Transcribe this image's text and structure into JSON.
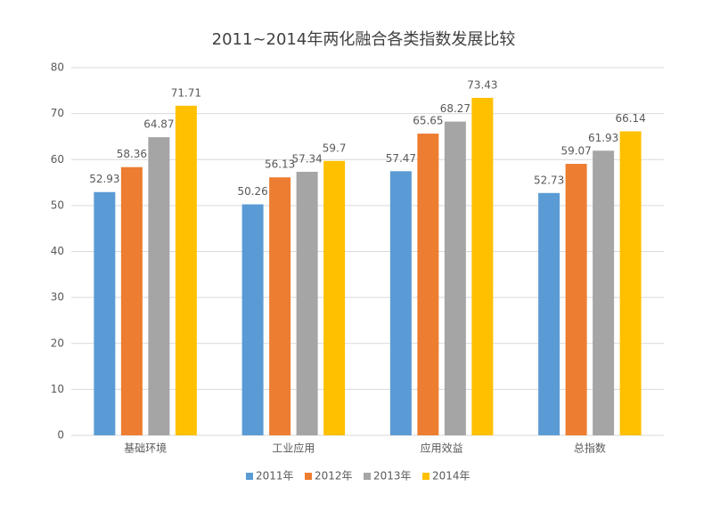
{
  "chart_data": {
    "type": "bar",
    "title": "2011~2014年两化融合各类指数发展比较",
    "categories": [
      "基础环境",
      "工业应用",
      "应用效益",
      "总指数"
    ],
    "series": [
      {
        "name": "2011年",
        "color": "#5b9bd5",
        "values": [
          52.93,
          50.26,
          57.47,
          52.73
        ]
      },
      {
        "name": "2012年",
        "color": "#ed7d31",
        "values": [
          58.36,
          56.13,
          65.65,
          59.07
        ]
      },
      {
        "name": "2013年",
        "color": "#a5a5a5",
        "values": [
          64.87,
          57.34,
          68.27,
          61.93
        ]
      },
      {
        "name": "2014年",
        "color": "#ffc000",
        "values": [
          71.71,
          59.7,
          73.43,
          66.14
        ]
      }
    ],
    "ylim": [
      0,
      80
    ],
    "yticks": [
      0,
      10,
      20,
      30,
      40,
      50,
      60,
      70,
      80
    ],
    "grid": true,
    "legend": "bottom"
  }
}
